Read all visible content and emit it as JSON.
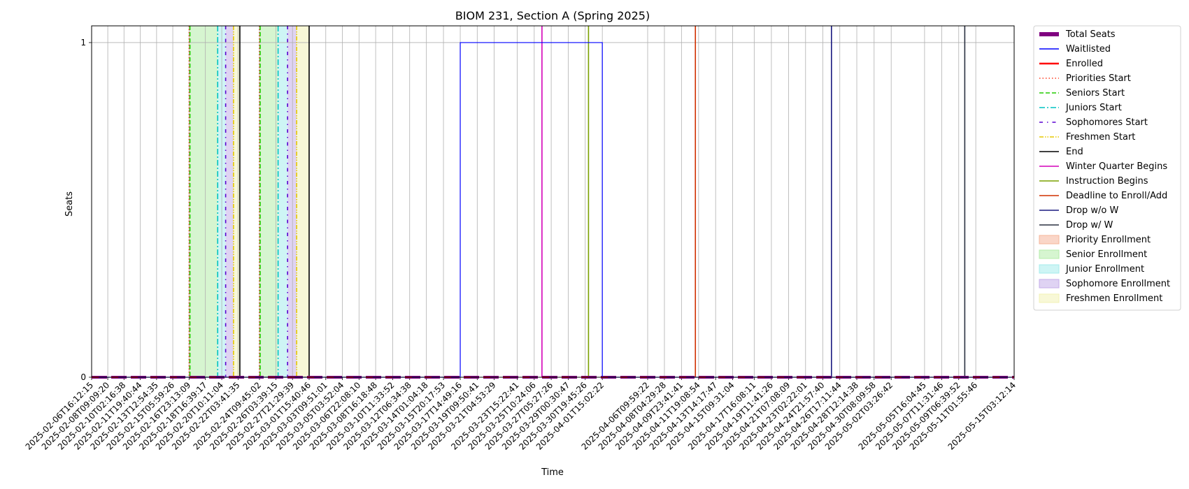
{
  "chart_data": {
    "type": "line",
    "title": "BIOM 231, Section A (Spring 2025)",
    "xlabel": "Time",
    "ylabel": "Seats",
    "x_type": "datetime",
    "xlim": [
      "2025-02-06T16:12:15",
      "2025-05-15T03:12:14"
    ],
    "ylim": [
      0,
      1.05
    ],
    "y_ticks": [
      0,
      1
    ],
    "grid": true,
    "legend_placement": "outside-right-top",
    "x_tick_labels": [
      "2025-02-06T16:12:15",
      "2025-02-08T09:09:20",
      "2025-02-10T02:16:38",
      "2025-02-11T19:40:44",
      "2025-02-13T12:54:35",
      "2025-02-15T05:59:26",
      "2025-02-16T23:13:09",
      "2025-02-18T16:39:17",
      "2025-02-20T10:11:04",
      "2025-02-22T03:41:35",
      "2025-02-24T09:45:02",
      "2025-02-26T03:39:15",
      "2025-02-27T21:29:39",
      "2025-03-01T15:40:46",
      "2025-03-03T09:51:01",
      "2025-03-05T03:52:04",
      "2025-03-06T22:08:10",
      "2025-03-08T16:18:48",
      "2025-03-10T11:33:52",
      "2025-03-12T06:34:38",
      "2025-03-14T01:04:18",
      "2025-03-15T20:17:53",
      "2025-03-17T14:49:16",
      "2025-03-19T09:50:41",
      "2025-03-21T04:53:29",
      "2025-03-23T15:22:41",
      "2025-03-25T10:24:06",
      "2025-03-27T05:27:26",
      "2025-03-29T00:30:47",
      "2025-03-30T19:45:26",
      "2025-04-01T15:02:22",
      "2025-04-06T09:59:22",
      "2025-04-08T04:29:28",
      "2025-04-09T23:41:41",
      "2025-04-11T19:08:54",
      "2025-04-13T14:17:47",
      "2025-04-15T09:31:04",
      "2025-04-17T16:08:11",
      "2025-04-19T11:41:26",
      "2025-04-21T07:08:09",
      "2025-04-23T02:22:01",
      "2025-04-24T21:57:40",
      "2025-04-26T17:11:44",
      "2025-04-28T12:14:38",
      "2025-04-30T08:09:58",
      "2025-05-02T03:26:42",
      "2025-05-05T16:04:45",
      "2025-05-07T11:31:46",
      "2025-05-09T06:39:52",
      "2025-05-11T01:55:46",
      "2025-05-15T03:12:14"
    ],
    "series": [
      {
        "name": "Total Seats",
        "color": "#800080",
        "style": "thick-solid",
        "steps": [
          [
            "2025-02-06T16:12:15",
            0
          ]
        ]
      },
      {
        "name": "Waitlisted",
        "color": "#0000ff",
        "style": "solid",
        "steps": [
          [
            "2025-02-06T16:12:15",
            0
          ],
          [
            "2025-03-17T14:49:16",
            1
          ],
          [
            "2025-04-01T15:02:22",
            0
          ]
        ]
      },
      {
        "name": "Enrolled",
        "color": "#ff0000",
        "style": "thick-solid",
        "steps": [
          [
            "2025-02-06T16:12:15",
            0
          ]
        ]
      }
    ],
    "events": [
      {
        "name": "Priorities Start",
        "color": "#ff3b1f",
        "style": "dotted",
        "dates": [
          "2025-02-16T23:20:00",
          "2025-02-24T09:30:00"
        ]
      },
      {
        "name": "Seniors Start",
        "color": "#22cc00",
        "style": "dashed",
        "dates": [
          "2025-02-17T01:30:00",
          "2025-02-24T11:30:00"
        ]
      },
      {
        "name": "Juniors Start",
        "color": "#00c3c3",
        "style": "dashdot",
        "dates": [
          "2025-02-19T23:50:00",
          "2025-02-26T09:00:00"
        ]
      },
      {
        "name": "Sophomores Start",
        "color": "#5a00d0",
        "style": "loose-dashdot",
        "dates": [
          "2025-02-20T20:00:00",
          "2025-02-27T09:00:00"
        ]
      },
      {
        "name": "Freshmen Start",
        "color": "#e6c800",
        "style": "dashdotdot",
        "dates": [
          "2025-02-21T16:00:00",
          "2025-02-28T08:00:00"
        ]
      },
      {
        "name": "End",
        "color": "#000000",
        "style": "solid",
        "dates": [
          "2025-02-22T08:00:00",
          "2025-03-01T15:40:46"
        ]
      },
      {
        "name": "Winter Quarter Begins",
        "color": "#d400b8",
        "style": "solid",
        "dates": [
          "2025-03-26T06:00:00"
        ]
      },
      {
        "name": "Instruction Begins",
        "color": "#7aa000",
        "style": "solid",
        "dates": [
          "2025-03-31T04:00:00"
        ]
      },
      {
        "name": "Deadline to Enroll/Add",
        "color": "#d03000",
        "style": "solid",
        "dates": [
          "2025-04-11T11:00:00"
        ]
      },
      {
        "name": "Drop w/o W",
        "color": "#1a1a80",
        "style": "solid",
        "dates": [
          "2025-04-25T20:00:00"
        ]
      },
      {
        "name": "Drop w/ W",
        "color": "#2a3040",
        "style": "solid",
        "dates": [
          "2025-05-09T22:00:00"
        ]
      }
    ],
    "spans": [
      {
        "name": "Priority Enrollment",
        "color": "#f5b59a",
        "ranges": [
          [
            "2025-02-16T23:20:00",
            "2025-02-17T01:30:00"
          ],
          [
            "2025-02-24T09:30:00",
            "2025-02-24T11:30:00"
          ]
        ]
      },
      {
        "name": "Senior Enrollment",
        "color": "#b4ecaa",
        "ranges": [
          [
            "2025-02-17T01:30:00",
            "2025-02-19T23:50:00"
          ],
          [
            "2025-02-24T11:30:00",
            "2025-02-26T09:00:00"
          ]
        ]
      },
      {
        "name": "Junior Enrollment",
        "color": "#a6ecec",
        "ranges": [
          [
            "2025-02-19T23:50:00",
            "2025-02-20T20:00:00"
          ],
          [
            "2025-02-26T09:00:00",
            "2025-02-27T09:00:00"
          ]
        ]
      },
      {
        "name": "Sophomore Enrollment",
        "color": "#c4aeea",
        "ranges": [
          [
            "2025-02-20T20:00:00",
            "2025-02-21T16:00:00"
          ],
          [
            "2025-02-27T09:00:00",
            "2025-02-28T08:00:00"
          ]
        ]
      },
      {
        "name": "Freshmen Enrollment",
        "color": "#f2f2b6",
        "ranges": [
          [
            "2025-02-21T16:00:00",
            "2025-02-22T08:00:00"
          ],
          [
            "2025-02-28T08:00:00",
            "2025-03-01T15:40:46"
          ]
        ]
      }
    ],
    "legend": [
      "Total Seats",
      "Waitlisted",
      "Enrolled",
      "Priorities Start",
      "Seniors Start",
      "Juniors Start",
      "Sophomores Start",
      "Freshmen Start",
      "End",
      "Winter Quarter Begins",
      "Instruction Begins",
      "Deadline to Enroll/Add",
      "Drop w/o W",
      "Drop w/ W",
      "Priority Enrollment",
      "Senior Enrollment",
      "Junior Enrollment",
      "Sophomore Enrollment",
      "Freshmen Enrollment"
    ]
  }
}
